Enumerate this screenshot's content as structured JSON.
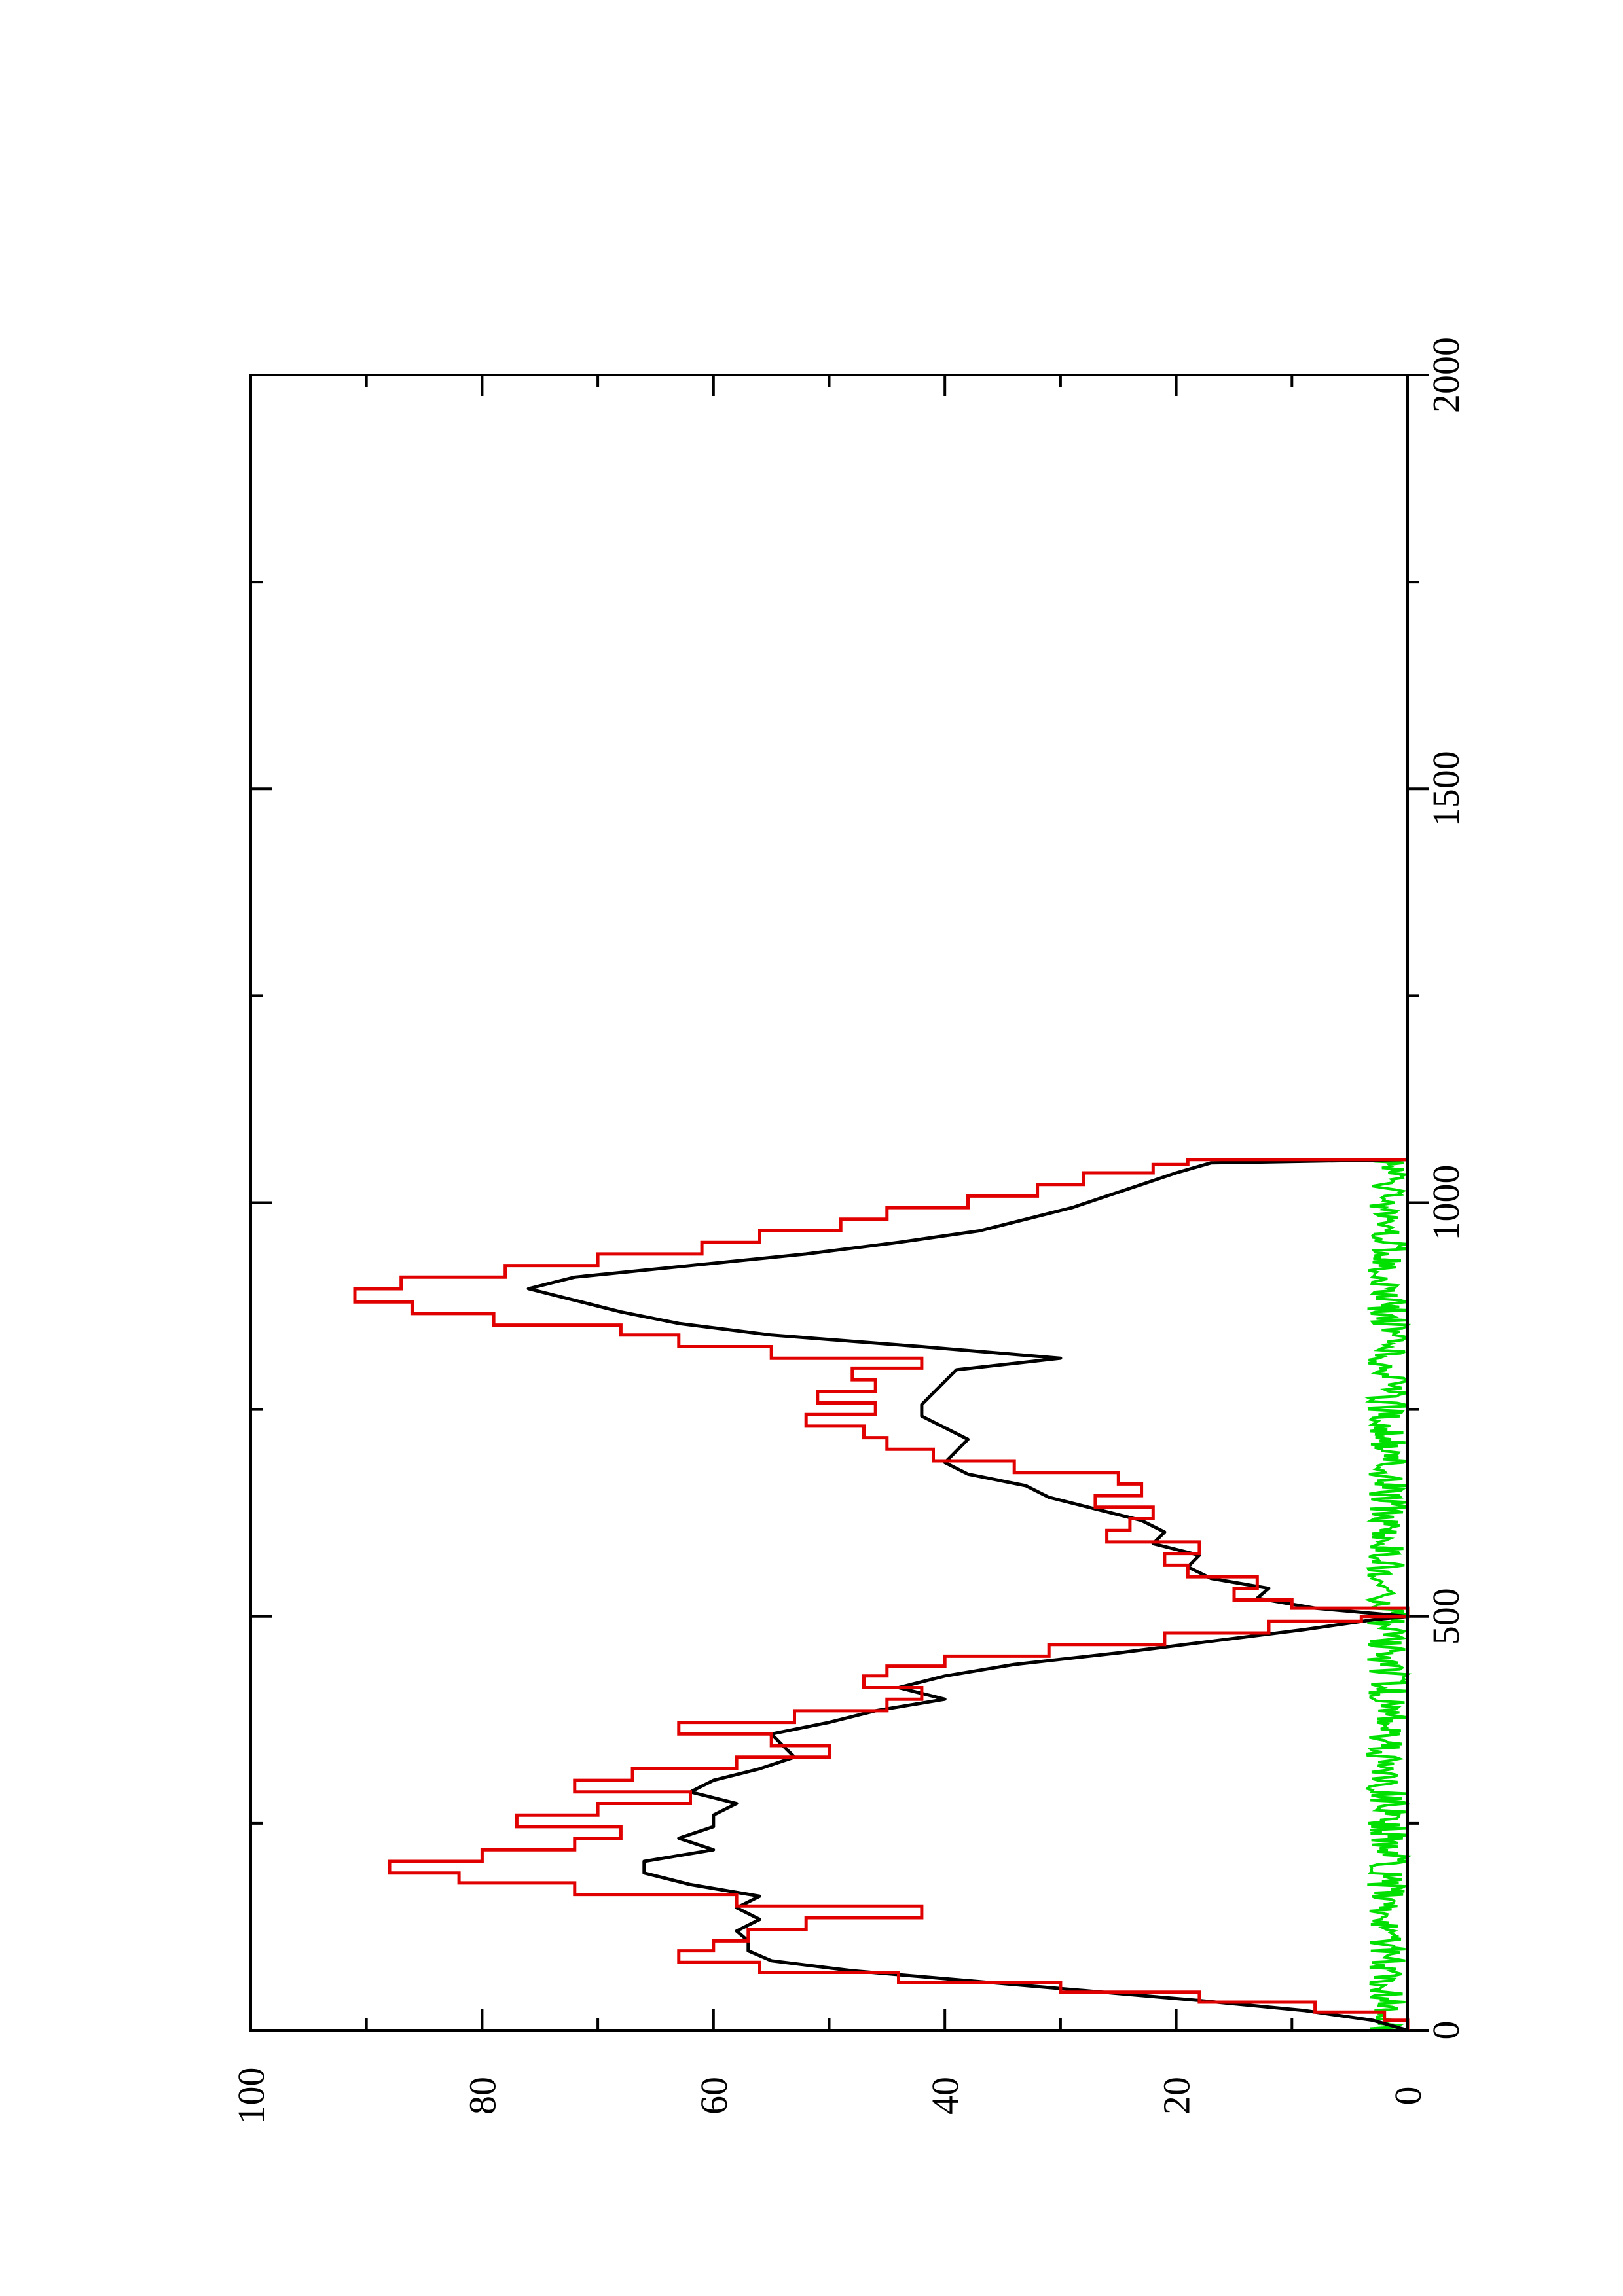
{
  "chart_data": {
    "type": "line",
    "title": "",
    "xlabel": "",
    "ylabel": "",
    "xlim": [
      0,
      2000
    ],
    "ylim": [
      0,
      100
    ],
    "x_ticks": [
      0,
      500,
      1000,
      1500,
      2000
    ],
    "x_minor_ticks": [
      250,
      750,
      1250,
      1750
    ],
    "y_ticks": [
      0,
      20,
      40,
      60,
      80,
      100
    ],
    "y_minor_ticks": [
      10,
      30,
      50,
      70,
      90
    ],
    "grid": false,
    "legend": "none",
    "orientation": "rotated 90 degrees counter-clockwise",
    "colors": {
      "red": "#e00000",
      "black": "#000000",
      "green": "#00e000",
      "axis": "#000000"
    },
    "series": [
      {
        "color": "#e00000",
        "style": "step",
        "x": [
          0,
          12,
          22,
          34,
          46,
          58,
          70,
          82,
          96,
          108,
          122,
          136,
          150,
          164,
          178,
          190,
          204,
          218,
          232,
          246,
          260,
          274,
          288,
          302,
          316,
          330,
          344,
          358,
          372,
          386,
          400,
          414,
          428,
          440,
          452,
          466,
          480,
          494,
          500,
          510,
          520,
          534,
          548,
          562,
          576,
          590,
          604,
          618,
          632,
          646,
          660,
          674,
          688,
          702,
          716,
          730,
          744,
          758,
          772,
          786,
          800,
          812,
          826,
          840,
          852,
          866,
          880,
          896,
          910,
          924,
          938,
          952,
          966,
          980,
          994,
          1008,
          1022,
          1036,
          1046,
          1052
        ],
        "y": [
          0,
          2,
          8,
          18,
          30,
          44,
          56,
          63,
          60,
          57,
          52,
          42,
          58,
          72,
          82,
          88,
          80,
          72,
          68,
          77,
          70,
          62,
          72,
          67,
          58,
          50,
          55,
          63,
          53,
          45,
          42,
          47,
          45,
          40,
          31,
          21,
          12,
          4,
          0,
          10,
          15,
          13,
          19,
          21,
          18,
          26,
          24,
          22,
          27,
          23,
          25,
          34,
          41,
          45,
          47,
          52,
          46,
          51,
          46,
          48,
          42,
          55,
          63,
          68,
          79,
          86,
          91,
          87,
          78,
          70,
          61,
          56,
          49,
          45,
          38,
          32,
          28,
          22,
          19,
          0
        ]
      },
      {
        "color": "#000000",
        "style": "line",
        "x": [
          0,
          12,
          24,
          36,
          48,
          60,
          72,
          84,
          96,
          108,
          120,
          134,
          148,
          162,
          176,
          190,
          204,
          218,
          232,
          246,
          260,
          274,
          288,
          302,
          316,
          330,
          344,
          358,
          372,
          386,
          400,
          414,
          428,
          442,
          456,
          470,
          484,
          496,
          500,
          510,
          522,
          534,
          546,
          560,
          574,
          588,
          602,
          616,
          630,
          644,
          658,
          672,
          686,
          700,
          714,
          728,
          742,
          756,
          770,
          784,
          798,
          812,
          826,
          840,
          854,
          868,
          882,
          896,
          910,
          924,
          938,
          952,
          966,
          980,
          994,
          1008,
          1022,
          1036,
          1048,
          1052
        ],
        "y": [
          0,
          3,
          9,
          18,
          28,
          38,
          48,
          55,
          57,
          57,
          58,
          56,
          58,
          56,
          62,
          66,
          66,
          60,
          63,
          60,
          60,
          58,
          62,
          60,
          56,
          53,
          54,
          55,
          50,
          46,
          40,
          44,
          40,
          34,
          25,
          17,
          9,
          3,
          0,
          8,
          13,
          12,
          17,
          19,
          18,
          22,
          21,
          23,
          27,
          31,
          33,
          38,
          40,
          39,
          38,
          40,
          42,
          42,
          41,
          40,
          39,
          30,
          42,
          55,
          63,
          68,
          72,
          76,
          72,
          62,
          52,
          44,
          37,
          33,
          29,
          26,
          23,
          20,
          17,
          0
        ]
      },
      {
        "color": "#00e000",
        "style": "line",
        "noise_x_range": [
          0,
          1052
        ],
        "noise_amplitude": [
          0,
          3.5
        ]
      }
    ]
  }
}
